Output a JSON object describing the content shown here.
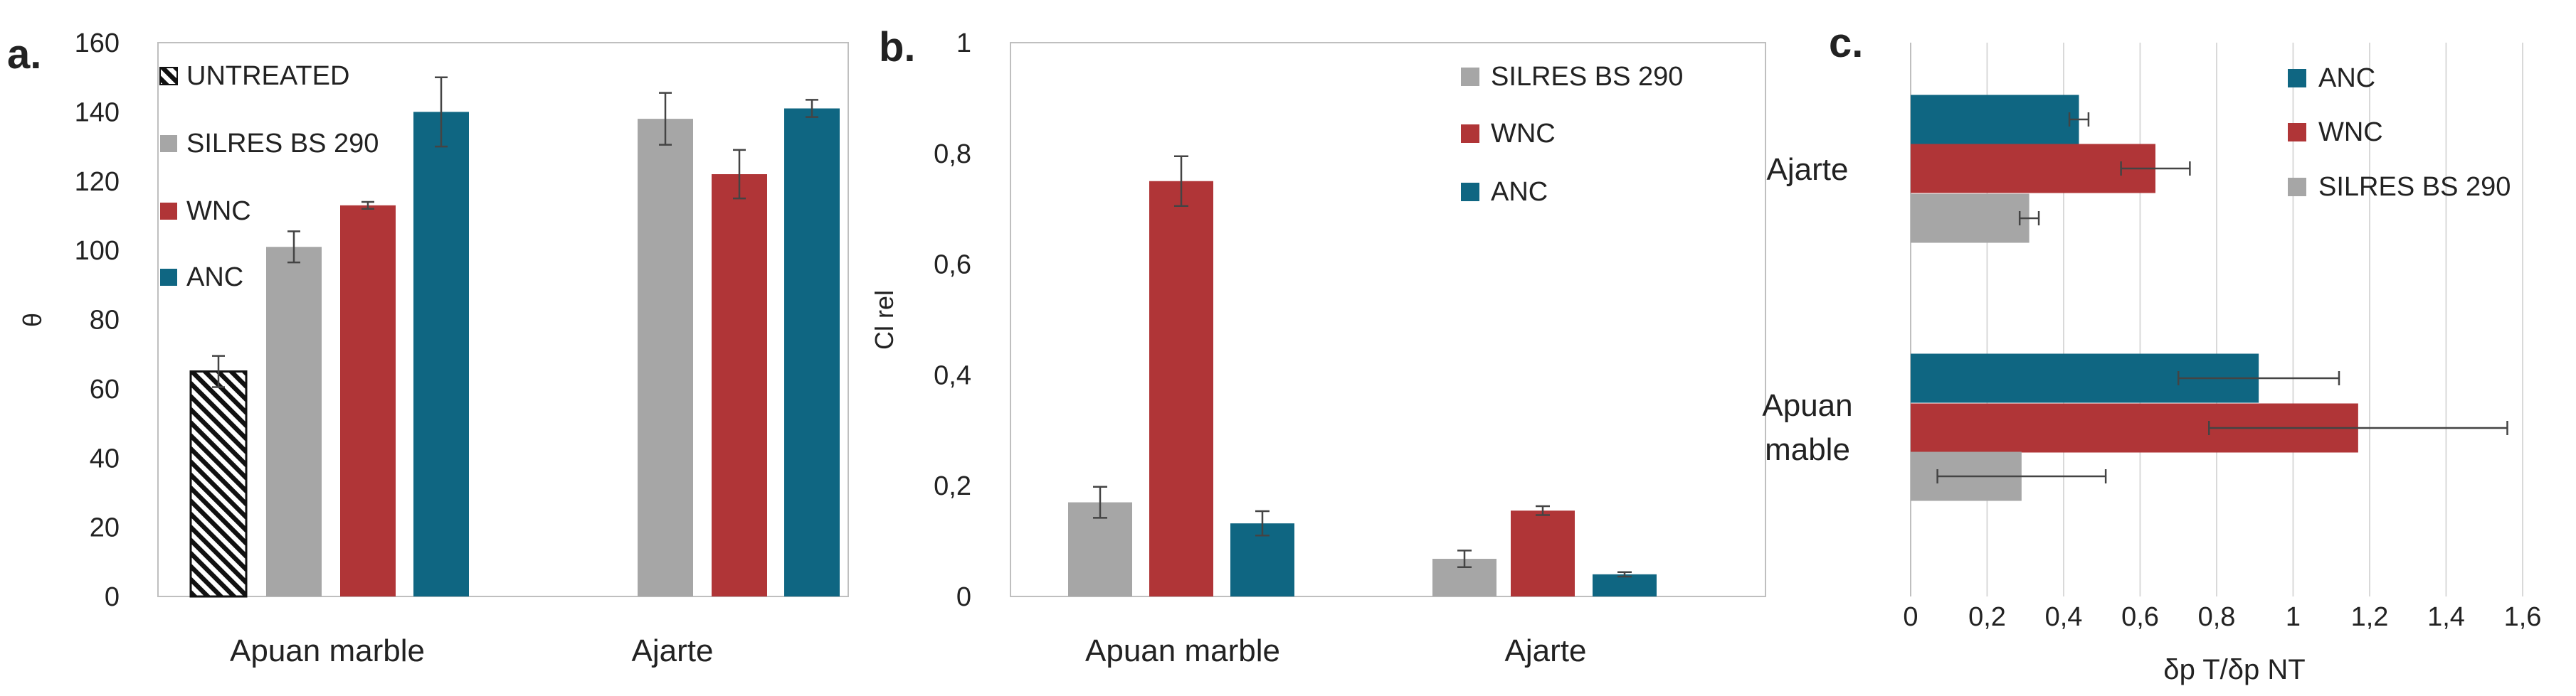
{
  "colors": {
    "untreated": "#ffffff",
    "silres": "#a6a6a6",
    "wnc": "#b03537",
    "anc": "#0f6682",
    "axis": "#808080",
    "grid": "#d9d9d9"
  },
  "chart_data": [
    {
      "panel": "a.",
      "type": "bar",
      "categories": [
        "Apuan marble",
        "Ajarte"
      ],
      "xlabel": "",
      "ylabel": "θ",
      "ylim": [
        0,
        160
      ],
      "yticks": [
        "0",
        "20",
        "40",
        "60",
        "80",
        "100",
        "120",
        "140",
        "160"
      ],
      "grid": false,
      "legend_position": "top-left",
      "series": [
        {
          "name": "UNTREATED",
          "color_key": "untreated",
          "hatched": true,
          "values": [
            65,
            null
          ],
          "errors": [
            4.5,
            null
          ]
        },
        {
          "name": "SILRES BS 290",
          "color_key": "silres",
          "values": [
            101,
            138
          ],
          "errors": [
            4.5,
            7.5
          ]
        },
        {
          "name": "WNC",
          "color_key": "wnc",
          "values": [
            113,
            122
          ],
          "errors": [
            1,
            7
          ]
        },
        {
          "name": "ANC",
          "color_key": "anc",
          "values": [
            140,
            141
          ],
          "errors": [
            10,
            2.5
          ]
        }
      ]
    },
    {
      "panel": "b.",
      "type": "bar",
      "categories": [
        "Apuan marble",
        "Ajarte"
      ],
      "xlabel": "",
      "ylabel": "Cl rel",
      "ylim": [
        0,
        1
      ],
      "yticks": [
        "0",
        "0,2",
        "0,4",
        "0,6",
        "0,8",
        "1"
      ],
      "grid": false,
      "legend_position": "top-right",
      "series": [
        {
          "name": "SILRES BS 290",
          "color_key": "silres",
          "values": [
            0.17,
            0.068
          ],
          "errors": [
            0.028,
            0.015
          ]
        },
        {
          "name": "WNC",
          "color_key": "wnc",
          "values": [
            0.75,
            0.155
          ],
          "errors": [
            0.045,
            0.008
          ]
        },
        {
          "name": "ANC",
          "color_key": "anc",
          "values": [
            0.132,
            0.04
          ],
          "errors": [
            0.022,
            0.004
          ]
        }
      ]
    },
    {
      "panel": "c.",
      "type": "bar",
      "orientation": "horizontal",
      "categories": [
        "Ajarte",
        "Apuan mable"
      ],
      "xlabel": "δp T/δp NT",
      "ylabel": "",
      "xlim": [
        0,
        1.6
      ],
      "xticks": [
        "0",
        "0,2",
        "0,4",
        "0,6",
        "0,8",
        "1",
        "1,2",
        "1,4",
        "1,6"
      ],
      "grid": true,
      "legend_position": "top-right",
      "series": [
        {
          "name": "ANC",
          "color_key": "anc",
          "values": [
            0.44,
            0.91
          ],
          "errors": [
            0.025,
            0.21
          ]
        },
        {
          "name": "WNC",
          "color_key": "wnc",
          "values": [
            0.64,
            1.17
          ],
          "errors": [
            0.09,
            0.39
          ]
        },
        {
          "name": "SILRES BS 290",
          "color_key": "silres",
          "values": [
            0.31,
            0.29
          ],
          "errors": [
            0.025,
            0.22
          ]
        }
      ]
    }
  ]
}
